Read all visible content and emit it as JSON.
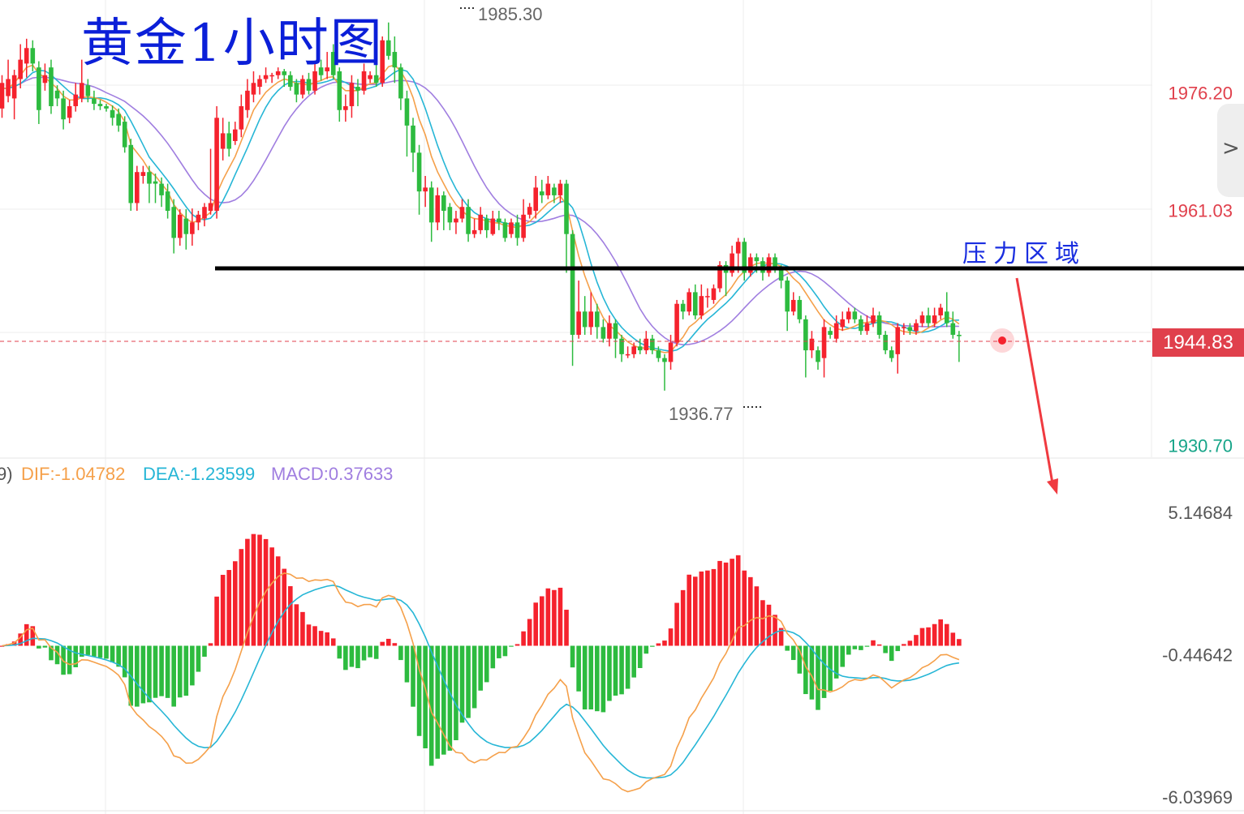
{
  "title": "黄金1小时图",
  "annotation": "压力区域",
  "current_price": "1944.83",
  "high_marker": "1985.30",
  "low_marker": "1936.77",
  "price_axis": {
    "ticks": [
      {
        "label": "1976.20",
        "value": 1976.2,
        "color": "#e0404c"
      },
      {
        "label": "1961.03",
        "value": 1961.03,
        "color": "#e0404c"
      },
      {
        "label": "1930.70",
        "value": 1930.7,
        "color": "#17a589"
      }
    ]
  },
  "macd_axis": {
    "ticks": [
      {
        "label": "5.14684",
        "value": 5.14684
      },
      {
        "label": "-0.44642",
        "value": -0.44642
      },
      {
        "label": "-6.03969",
        "value": -6.03969
      }
    ]
  },
  "macd_legend": {
    "prefix": "9)",
    "dif": "DIF:-1.04782",
    "dea": "DEA:-1.23599",
    "macd": "MACD:0.37633"
  },
  "colors": {
    "up": "#f5222d",
    "down": "#2dbb3f",
    "ma_orange": "#f5a04a",
    "ma_cyan": "#26b6d6",
    "ma_purple": "#a07ee0",
    "title": "#0b1fd8",
    "resistance": "#000000",
    "arrow": "#f03a40"
  },
  "chart_data": {
    "type": "candlestick",
    "ylim": [
      1929.2,
      1988.2
    ],
    "resistance_level": 1953.6,
    "current_price": 1944.83,
    "high": 1985.3,
    "low": 1936.77,
    "candles": [
      [
        1974.2,
        1977.5,
        1978.5,
        1973.0
      ],
      [
        1975.8,
        1978.0,
        1980.5,
        1975.0
      ],
      [
        1975.5,
        1978.5,
        1979.2,
        1972.8
      ],
      [
        1978.0,
        1980.5,
        1982.5,
        1976.8
      ],
      [
        1980.0,
        1982.0,
        1983.2,
        1978.2
      ],
      [
        1982.0,
        1980.0,
        1983.0,
        1979.0
      ],
      [
        1979.5,
        1974.0,
        1980.3,
        1972.2
      ],
      [
        1977.5,
        1978.5,
        1980.0,
        1976.5
      ],
      [
        1979.5,
        1974.5,
        1980.5,
        1973.5
      ],
      [
        1976.5,
        1975.5,
        1977.2,
        1974.5
      ],
      [
        1975.5,
        1972.8,
        1976.5,
        1971.5
      ],
      [
        1973.0,
        1974.5,
        1975.3,
        1972.3
      ],
      [
        1974.5,
        1976.0,
        1977.5,
        1973.8
      ],
      [
        1975.5,
        1977.5,
        1980.5,
        1975.0
      ],
      [
        1977.2,
        1975.8,
        1978.0,
        1975.0
      ],
      [
        1975.5,
        1974.8,
        1976.5,
        1974.0
      ],
      [
        1974.8,
        1974.5,
        1975.3,
        1974.0
      ],
      [
        1974.5,
        1974.2,
        1974.8,
        1973.8
      ],
      [
        1974.0,
        1973.0,
        1974.6,
        1972.0
      ],
      [
        1973.5,
        1972.0,
        1974.2,
        1971.2
      ],
      [
        1972.5,
        1969.2,
        1973.2,
        1968.5
      ],
      [
        1969.5,
        1962.0,
        1970.3,
        1961.0
      ],
      [
        1962.0,
        1966.0,
        1966.8,
        1961.0
      ],
      [
        1965.5,
        1966.0,
        1966.8,
        1964.5
      ],
      [
        1966.0,
        1964.5,
        1966.8,
        1962.0
      ],
      [
        1964.8,
        1964.5,
        1965.8,
        1962.0
      ],
      [
        1964.5,
        1963.0,
        1965.3,
        1961.5
      ],
      [
        1963.5,
        1961.0,
        1964.5,
        1960.0
      ],
      [
        1961.5,
        1957.5,
        1962.5,
        1955.5
      ],
      [
        1957.5,
        1960.5,
        1961.2,
        1956.5
      ],
      [
        1960.0,
        1958.0,
        1961.2,
        1956.0
      ],
      [
        1958.0,
        1959.5,
        1961.3,
        1956.5
      ],
      [
        1959.5,
        1960.5,
        1961.0,
        1958.5
      ],
      [
        1960.0,
        1961.5,
        1962.0,
        1959.0
      ],
      [
        1961.0,
        1962.0,
        1969.0,
        1960.5
      ],
      [
        1961.0,
        1973.0,
        1974.5,
        1960.0
      ],
      [
        1969.0,
        1971.0,
        1973.0,
        1967.5
      ],
      [
        1971.0,
        1969.0,
        1972.5,
        1968.0
      ],
      [
        1970.0,
        1971.5,
        1972.5,
        1969.5
      ],
      [
        1971.5,
        1974.5,
        1976.0,
        1970.5
      ],
      [
        1974.0,
        1976.5,
        1978.0,
        1973.0
      ],
      [
        1976.0,
        1977.5,
        1979.0,
        1975.0
      ],
      [
        1977.0,
        1978.0,
        1978.5,
        1976.0
      ],
      [
        1978.0,
        1978.5,
        1979.5,
        1977.5
      ],
      [
        1978.5,
        1978.5,
        1978.8,
        1977.5
      ],
      [
        1978.5,
        1979.0,
        1979.5,
        1978.0
      ],
      [
        1979.0,
        1978.5,
        1979.3,
        1977.0
      ],
      [
        1978.5,
        1977.0,
        1979.0,
        1976.5
      ],
      [
        1977.5,
        1976.0,
        1978.0,
        1975.0
      ],
      [
        1976.0,
        1978.0,
        1978.5,
        1975.5
      ],
      [
        1978.0,
        1976.5,
        1978.8,
        1976.0
      ],
      [
        1976.5,
        1979.0,
        1980.0,
        1976.0
      ],
      [
        1979.5,
        1978.5,
        1980.5,
        1977.8
      ],
      [
        1979.0,
        1979.5,
        1981.5,
        1978.0
      ],
      [
        1981.5,
        1978.5,
        1982.5,
        1978.0
      ],
      [
        1979.0,
        1974.0,
        1979.5,
        1972.5
      ],
      [
        1974.0,
        1974.5,
        1976.0,
        1972.5
      ],
      [
        1974.5,
        1977.5,
        1978.5,
        1973.0
      ],
      [
        1977.0,
        1976.5,
        1978.0,
        1974.5
      ],
      [
        1976.5,
        1979.0,
        1980.0,
        1976.0
      ],
      [
        1978.0,
        1978.5,
        1979.0,
        1977.5
      ],
      [
        1978.5,
        1977.5,
        1980.0,
        1977.0
      ],
      [
        1977.5,
        1983.0,
        1983.5,
        1977.0
      ],
      [
        1983.0,
        1981.0,
        1985.3,
        1980.5
      ],
      [
        1981.5,
        1979.5,
        1983.5,
        1977.5
      ],
      [
        1979.5,
        1975.5,
        1980.0,
        1974.0
      ],
      [
        1975.5,
        1972.0,
        1976.5,
        1968.0
      ],
      [
        1972.0,
        1968.5,
        1973.0,
        1966.0
      ],
      [
        1968.5,
        1963.5,
        1969.5,
        1960.5
      ],
      [
        1963.5,
        1964.0,
        1965.5,
        1961.5
      ],
      [
        1964.0,
        1959.5,
        1964.8,
        1957.0
      ],
      [
        1959.5,
        1963.0,
        1964.0,
        1958.5
      ],
      [
        1963.0,
        1961.0,
        1963.5,
        1958.5
      ],
      [
        1961.5,
        1959.5,
        1962.0,
        1958.5
      ],
      [
        1959.5,
        1960.0,
        1961.0,
        1958.0
      ],
      [
        1960.0,
        1961.5,
        1962.5,
        1959.5
      ],
      [
        1961.5,
        1958.0,
        1962.5,
        1957.0
      ],
      [
        1958.0,
        1958.5,
        1960.0,
        1957.5
      ],
      [
        1958.5,
        1960.5,
        1961.5,
        1958.0
      ],
      [
        1960.0,
        1958.5,
        1960.5,
        1957.5
      ],
      [
        1958.0,
        1960.0,
        1961.0,
        1957.8
      ],
      [
        1960.0,
        1959.5,
        1961.0,
        1958.5
      ],
      [
        1959.5,
        1957.5,
        1960.0,
        1957.0
      ],
      [
        1958.0,
        1959.5,
        1960.0,
        1957.5
      ],
      [
        1959.5,
        1957.5,
        1960.5,
        1956.5
      ],
      [
        1957.5,
        1960.5,
        1962.5,
        1957.0
      ],
      [
        1960.5,
        1961.5,
        1962.0,
        1960.0
      ],
      [
        1961.0,
        1964.0,
        1965.5,
        1960.0
      ],
      [
        1963.5,
        1963.0,
        1965.0,
        1962.0
      ],
      [
        1963.0,
        1964.5,
        1965.5,
        1962.5
      ],
      [
        1964.0,
        1963.0,
        1964.5,
        1962.0
      ],
      [
        1963.0,
        1964.5,
        1965.0,
        1962.0
      ],
      [
        1964.5,
        1958.0,
        1965.0,
        1953.0
      ],
      [
        1958.0,
        1945.0,
        1958.5,
        1941.0
      ],
      [
        1945.0,
        1948.0,
        1952.0,
        1944.5
      ],
      [
        1948.0,
        1946.0,
        1950.0,
        1945.0
      ],
      [
        1946.0,
        1948.0,
        1950.5,
        1945.0
      ],
      [
        1948.0,
        1946.0,
        1949.0,
        1944.5
      ],
      [
        1946.0,
        1944.5,
        1947.0,
        1944.0
      ],
      [
        1944.5,
        1946.5,
        1947.5,
        1943.5
      ],
      [
        1946.5,
        1944.5,
        1947.0,
        1942.0
      ],
      [
        1944.5,
        1942.5,
        1945.0,
        1941.5
      ],
      [
        1942.5,
        1942.5,
        1943.5,
        1942.0
      ],
      [
        1942.5,
        1943.5,
        1944.0,
        1942.0
      ],
      [
        1943.5,
        1943.0,
        1944.5,
        1942.5
      ],
      [
        1943.0,
        1944.5,
        1945.5,
        1942.5
      ],
      [
        1944.5,
        1943.0,
        1945.0,
        1942.5
      ],
      [
        1943.0,
        1942.0,
        1943.5,
        1941.5
      ],
      [
        1942.0,
        1941.5,
        1942.5,
        1937.8
      ],
      [
        1941.5,
        1944.0,
        1945.0,
        1940.5
      ],
      [
        1944.0,
        1949.0,
        1949.5,
        1943.5
      ],
      [
        1949.0,
        1948.0,
        1949.5,
        1947.0
      ],
      [
        1948.0,
        1950.5,
        1951.0,
        1947.5
      ],
      [
        1950.5,
        1947.5,
        1951.5,
        1947.0
      ],
      [
        1947.5,
        1950.0,
        1951.5,
        1947.0
      ],
      [
        1950.0,
        1950.0,
        1951.0,
        1948.5
      ],
      [
        1949.5,
        1951.0,
        1951.5,
        1949.0
      ],
      [
        1951.0,
        1954.0,
        1954.5,
        1950.5
      ],
      [
        1954.0,
        1953.0,
        1954.5,
        1950.0
      ],
      [
        1953.0,
        1955.5,
        1956.5,
        1952.5
      ],
      [
        1955.5,
        1957.0,
        1957.5,
        1953.0
      ],
      [
        1957.0,
        1953.0,
        1957.5,
        1952.0
      ],
      [
        1953.0,
        1955.0,
        1955.5,
        1952.5
      ],
      [
        1955.0,
        1954.5,
        1955.5,
        1953.0
      ],
      [
        1954.5,
        1953.0,
        1955.0,
        1952.0
      ],
      [
        1953.0,
        1955.0,
        1955.5,
        1952.5
      ],
      [
        1955.0,
        1953.5,
        1955.5,
        1953.0
      ],
      [
        1953.5,
        1952.0,
        1954.0,
        1951.0
      ],
      [
        1952.0,
        1948.0,
        1952.5,
        1945.5
      ],
      [
        1948.0,
        1949.5,
        1950.5,
        1947.5
      ],
      [
        1949.5,
        1947.0,
        1950.0,
        1946.5
      ],
      [
        1947.0,
        1943.0,
        1947.5,
        1939.5
      ],
      [
        1943.0,
        1944.5,
        1945.5,
        1942.0
      ],
      [
        1943.0,
        1941.5,
        1943.5,
        1940.5
      ],
      [
        1942.0,
        1946.0,
        1947.0,
        1939.5
      ],
      [
        1945.5,
        1945.0,
        1946.0,
        1944.5
      ],
      [
        1944.5,
        1946.5,
        1947.5,
        1944.0
      ],
      [
        1946.0,
        1947.0,
        1948.0,
        1945.5
      ],
      [
        1947.0,
        1948.0,
        1948.5,
        1946.5
      ],
      [
        1948.0,
        1947.0,
        1948.5,
        1946.5
      ],
      [
        1947.0,
        1945.5,
        1947.5,
        1945.0
      ],
      [
        1945.5,
        1946.5,
        1947.5,
        1945.0
      ],
      [
        1946.5,
        1947.5,
        1948.5,
        1946.0
      ],
      [
        1947.5,
        1945.0,
        1948.0,
        1944.5
      ],
      [
        1945.0,
        1943.0,
        1945.5,
        1942.5
      ],
      [
        1943.0,
        1942.0,
        1943.5,
        1941.5
      ],
      [
        1942.5,
        1946.0,
        1946.5,
        1940.0
      ],
      [
        1946.0,
        1946.0,
        1946.5,
        1945.0
      ],
      [
        1946.0,
        1945.5,
        1946.5,
        1945.0
      ],
      [
        1945.5,
        1946.5,
        1947.0,
        1945.0
      ],
      [
        1946.5,
        1947.5,
        1948.0,
        1946.0
      ],
      [
        1947.5,
        1946.5,
        1948.5,
        1946.0
      ],
      [
        1946.5,
        1947.5,
        1948.5,
        1946.0
      ],
      [
        1947.5,
        1948.5,
        1949.0,
        1947.0
      ],
      [
        1948.0,
        1946.5,
        1950.5,
        1946.0
      ],
      [
        1946.5,
        1945.0,
        1948.0,
        1944.5
      ],
      [
        1945.0,
        1944.83,
        1945.5,
        1941.5
      ]
    ],
    "ma_orange": [
      1976.8,
      1976.8,
      1977.5,
      1978.5,
      1979.5,
      1979.8,
      1978.7,
      1978.2,
      1977.5,
      1976.8,
      1975.8,
      1975.3,
      1975.3,
      1975.6,
      1975.7,
      1975.6,
      1975.4,
      1975.0,
      1974.5,
      1973.8,
      1972.5,
      1969.5,
      1968.5,
      1967.5,
      1966.2,
      1965.5,
      1964.5,
      1963.5,
      1961.8,
      1960.8,
      1960.0,
      1959.5,
      1959.7,
      1960.2,
      1960.8,
      1963.2,
      1965.0,
      1966.5,
      1968.0,
      1970.0,
      1972.0,
      1974.0,
      1975.2,
      1976.3,
      1977.0,
      1977.6,
      1978.0,
      1977.8,
      1977.4,
      1977.4,
      1977.2,
      1977.6,
      1977.8,
      1978.2,
      1978.3,
      1977.2,
      1976.5,
      1976.5,
      1976.5,
      1977.0,
      1977.4,
      1977.5,
      1978.6,
      1979.6,
      1979.8,
      1979.0,
      1977.6,
      1975.6,
      1972.8,
      1970.8,
      1968.0,
      1966.0,
      1964.5,
      1963.0,
      1961.8,
      1961.0,
      1960.3,
      1960.0,
      1959.9,
      1959.7,
      1959.5,
      1959.4,
      1959.1,
      1959.0,
      1958.8,
      1959.2,
      1959.6,
      1960.4,
      1961.2,
      1962.0,
      1962.4,
      1962.9,
      1961.8,
      1958.4,
      1955.2,
      1952.6,
      1950.5,
      1948.8,
      1947.2,
      1946.2,
      1945.6,
      1944.8,
      1944.1,
      1943.6,
      1943.3,
      1943.3,
      1943.1,
      1942.9,
      1942.7,
      1942.8,
      1943.8,
      1944.7,
      1946.0,
      1946.6,
      1947.4,
      1948.0,
      1948.6,
      1949.5,
      1950.2,
      1951.2,
      1952.4,
      1953.2,
      1953.8,
      1954.2,
      1954.3,
      1954.2,
      1954.2,
      1953.8,
      1953.2,
      1952.3,
      1951.6,
      1950.4,
      1949.2,
      1948.0,
      1946.9,
      1946.3,
      1945.8,
      1945.6,
      1945.8,
      1946.1,
      1946.5,
      1946.6,
      1946.7,
      1946.9,
      1946.7,
      1946.3,
      1945.7,
      1945.4,
      1945.3,
      1945.2,
      1945.4,
      1945.9,
      1946.3,
      1946.9,
      1947.3,
      1947.0,
      1946.4
    ]
  }
}
